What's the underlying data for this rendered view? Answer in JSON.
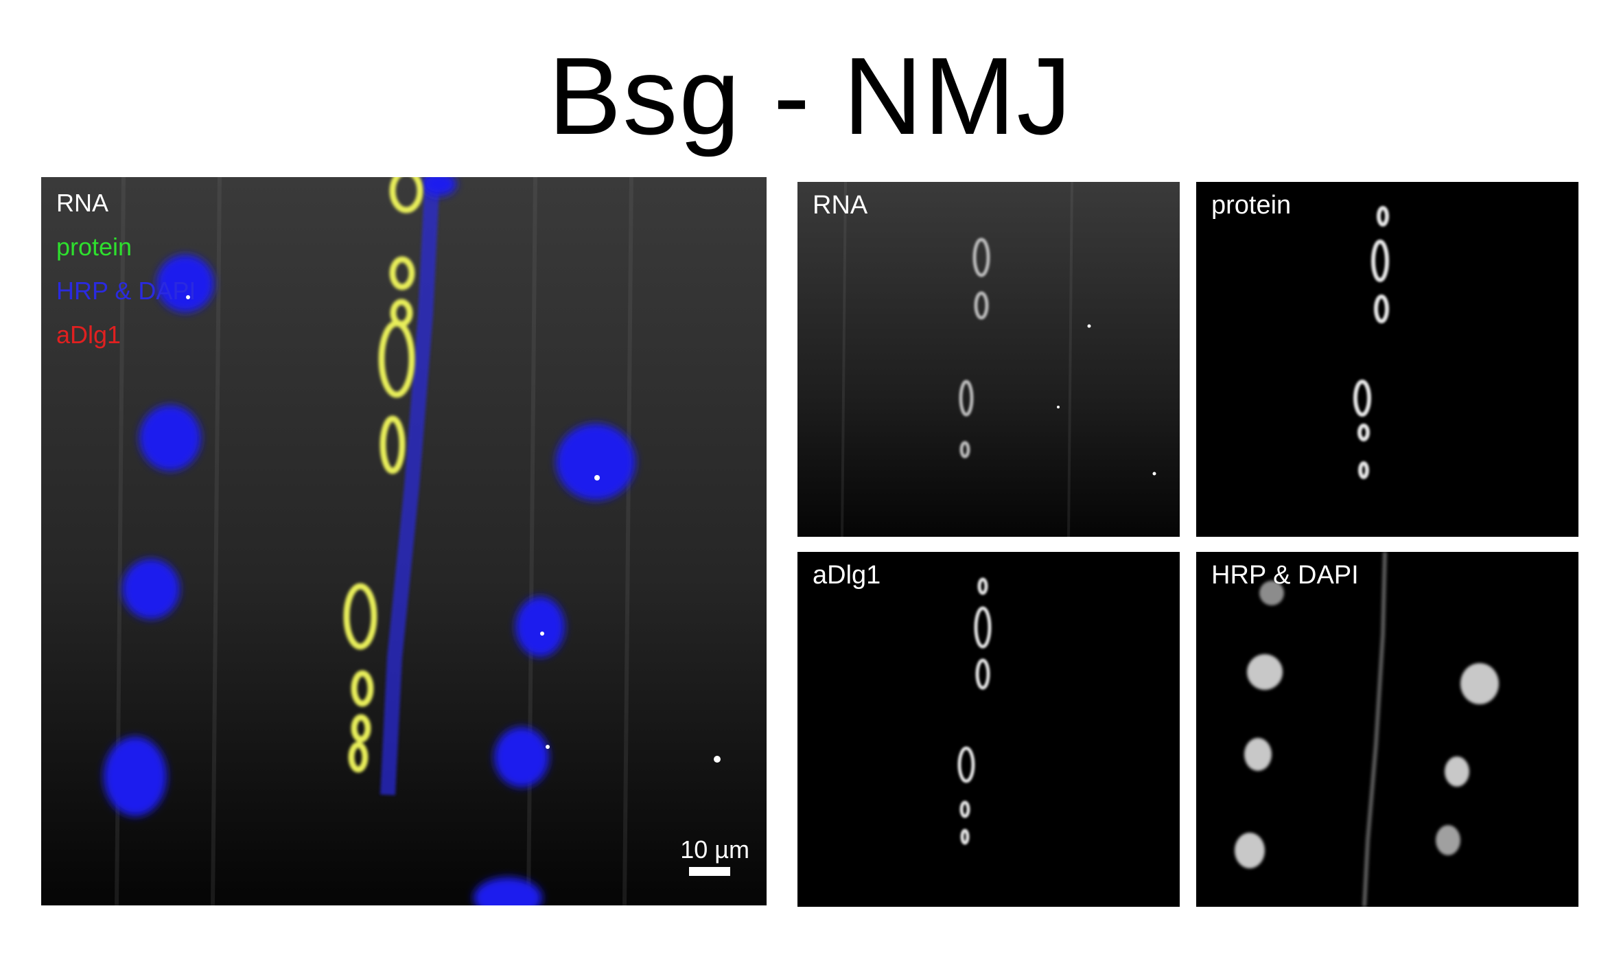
{
  "title": "Bsg - NMJ",
  "main_panel": {
    "legend": {
      "rna": "RNA",
      "protein": "protein",
      "hrp_dapi": "HRP & DAPI",
      "adlg1": "aDlg1"
    },
    "scale_bar_label": "10 µm"
  },
  "panels": {
    "rna": "RNA",
    "protein": "protein",
    "adlg1": "aDlg1",
    "hrp_dapi": "HRP & DAPI"
  },
  "colors": {
    "rna": "#ffffff",
    "protein": "#2ee02e",
    "hrp_dapi": "#2a2ae0",
    "adlg1": "#e02020",
    "background": "#000000"
  }
}
